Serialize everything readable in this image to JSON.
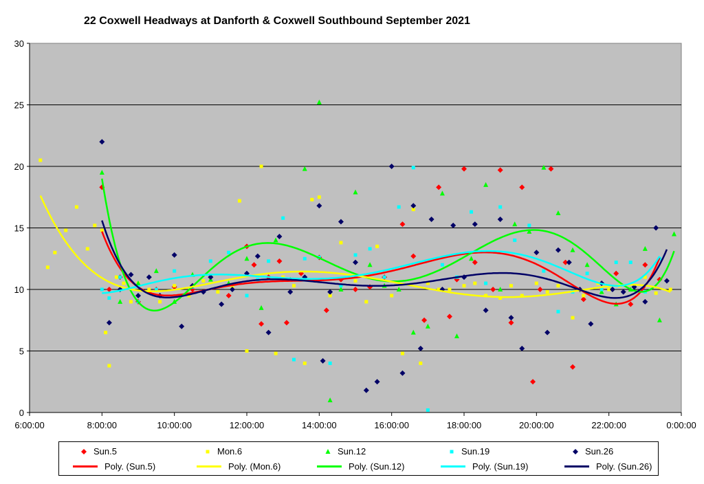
{
  "chart_data": {
    "type": "scatter",
    "title": "22 Coxwell Headways at Danforth & Coxwell Southbound September 2021",
    "xlabel": "",
    "ylabel": "",
    "xlim": [
      6,
      24
    ],
    "ylim": [
      0,
      30
    ],
    "x_ticks": [
      "6:00:00",
      "8:00:00",
      "10:00:00",
      "12:00:00",
      "14:00:00",
      "16:00:00",
      "18:00:00",
      "20:00:00",
      "22:00:00",
      "0:00:00"
    ],
    "y_ticks": [
      "0",
      "5",
      "10",
      "15",
      "20",
      "25",
      "30"
    ],
    "plot_background": "#c0c0c0",
    "grid": true,
    "legend_position": "bottom",
    "series": [
      {
        "name": "Sun.5",
        "marker": "diamond",
        "color": "#ff0000",
        "x": [
          8.0,
          8.2,
          8.5,
          9.0,
          9.5,
          10.0,
          10.5,
          11.0,
          11.5,
          12.0,
          12.2,
          12.4,
          12.6,
          12.9,
          13.1,
          13.5,
          14.0,
          14.2,
          14.6,
          15.0,
          15.4,
          15.8,
          16.3,
          16.6,
          16.9,
          17.3,
          17.6,
          17.8,
          18.0,
          18.3,
          18.8,
          19.0,
          19.3,
          19.6,
          19.9,
          20.1,
          20.4,
          20.8,
          21.0,
          21.3,
          21.8,
          22.2,
          22.6,
          23.0,
          23.4
        ],
        "y": [
          18.3,
          10,
          11,
          9,
          10,
          10.2,
          10,
          11,
          9.5,
          13.5,
          12,
          7.2,
          11,
          12.3,
          7.3,
          11.3,
          12.6,
          8.3,
          10.8,
          10,
          10.2,
          11,
          15.3,
          12.7,
          7.5,
          18.3,
          7.8,
          10.8,
          19.8,
          12.2,
          10,
          19.7,
          7.3,
          18.3,
          2.5,
          10,
          19.8,
          12.2,
          3.7,
          9.2,
          10,
          11.3,
          8.8,
          12,
          10.8
        ]
      },
      {
        "name": "Mon.6",
        "marker": "square",
        "color": "#ffff00",
        "x": [
          6.3,
          6.5,
          6.7,
          7.0,
          7.3,
          7.6,
          7.8,
          8.0,
          8.1,
          8.2,
          8.4,
          8.6,
          8.8,
          9.0,
          9.3,
          9.6,
          10.0,
          10.4,
          10.8,
          11.2,
          11.6,
          11.8,
          12.0,
          12.4,
          12.8,
          13.0,
          13.3,
          13.6,
          13.8,
          14.0,
          14.3,
          14.6,
          15.0,
          15.3,
          15.6,
          16.0,
          16.3,
          16.6,
          16.8,
          17.0,
          17.3,
          17.6,
          18.0,
          18.3,
          18.6,
          19.0,
          19.3,
          19.6,
          20.0,
          20.3,
          20.6,
          21.0,
          21.3,
          21.7,
          22.0,
          22.3,
          22.7,
          23.0,
          23.3,
          23.7
        ],
        "y": [
          20.5,
          11.8,
          13,
          14.8,
          16.7,
          13.3,
          15.2,
          14.8,
          6.5,
          3.8,
          11,
          10.5,
          9,
          10.5,
          10,
          9,
          10.3,
          9.5,
          10.7,
          9.8,
          10.2,
          17.2,
          5,
          20,
          4.8,
          11,
          10.3,
          4,
          17.3,
          17.5,
          9.5,
          13.8,
          10.7,
          9,
          13.5,
          9.5,
          4.8,
          16.5,
          4,
          10.5,
          10,
          10,
          10.3,
          10.5,
          9.5,
          9.3,
          10.3,
          9.5,
          10.5,
          9.8,
          10.3,
          7.7,
          9.5,
          10.5,
          10,
          10.3,
          10.3,
          11,
          9.7,
          10
        ]
      },
      {
        "name": "Sun.12",
        "marker": "triangle",
        "color": "#00ff00",
        "x": [
          8.0,
          8.5,
          9.0,
          9.5,
          10.0,
          10.5,
          11.0,
          11.5,
          12.0,
          12.4,
          12.8,
          13.2,
          13.6,
          14.0,
          14.3,
          14.6,
          15.0,
          15.4,
          15.8,
          16.2,
          16.6,
          17.0,
          17.4,
          17.8,
          18.2,
          18.6,
          19.0,
          19.4,
          19.8,
          20.2,
          20.6,
          21.0,
          21.4,
          21.8,
          22.2,
          22.6,
          23.0,
          23.4,
          23.8
        ],
        "y": [
          19.5,
          9,
          10.5,
          11.5,
          9,
          11.2,
          10.8,
          10.5,
          12.5,
          8.5,
          14,
          10.8,
          19.8,
          25.2,
          1,
          10,
          17.9,
          12,
          10.3,
          10,
          6.5,
          7,
          17.8,
          6.2,
          12.5,
          18.5,
          10,
          15.3,
          14.7,
          19.9,
          16.2,
          13.2,
          12,
          9.8,
          8.8,
          10,
          13.3,
          7.5,
          14.5
        ]
      },
      {
        "name": "Sun.19",
        "marker": "square",
        "color": "#00ffff",
        "x": [
          8.0,
          8.2,
          8.5,
          9.0,
          9.5,
          10.0,
          10.5,
          11.0,
          11.5,
          12.0,
          12.3,
          12.6,
          13.0,
          13.3,
          13.6,
          14.0,
          14.3,
          14.6,
          15.0,
          15.4,
          15.8,
          16.2,
          16.6,
          17.0,
          17.4,
          17.8,
          18.2,
          18.6,
          19.0,
          19.4,
          19.8,
          20.2,
          20.6,
          21.0,
          21.4,
          21.8,
          22.2,
          22.6,
          23.0,
          23.4
        ],
        "y": [
          10,
          9.3,
          11,
          9,
          10,
          11.5,
          10.2,
          12.3,
          13,
          9.5,
          10.8,
          12.3,
          15.8,
          4.3,
          12.5,
          12.6,
          4,
          10.3,
          12.8,
          13.3,
          11,
          16.7,
          19.9,
          0.2,
          12,
          11,
          16.3,
          10.5,
          16.7,
          14,
          15.2,
          11.5,
          8.2,
          9.8,
          11.3,
          10,
          12.2,
          12.2,
          9.8,
          12.5
        ]
      },
      {
        "name": "Sun.26",
        "marker": "diamond",
        "color": "#000066",
        "x": [
          8.0,
          8.2,
          8.5,
          8.8,
          9.0,
          9.3,
          9.6,
          10.0,
          10.2,
          10.5,
          10.8,
          11.0,
          11.3,
          11.6,
          12.0,
          12.3,
          12.6,
          12.9,
          13.2,
          13.6,
          14.0,
          14.1,
          14.3,
          14.6,
          15.0,
          15.3,
          15.6,
          16.0,
          16.3,
          16.6,
          16.8,
          17.1,
          17.4,
          17.7,
          18.0,
          18.3,
          18.6,
          19.0,
          19.3,
          19.6,
          20.0,
          20.3,
          20.6,
          20.9,
          21.2,
          21.5,
          21.8,
          22.1,
          22.4,
          22.7,
          23.0,
          23.3,
          23.6
        ],
        "y": [
          22,
          7.3,
          10,
          11.2,
          9.5,
          11,
          9.5,
          12.8,
          7,
          10.3,
          9.8,
          11,
          8.8,
          10,
          11.3,
          12.7,
          6.5,
          14.3,
          9.8,
          11,
          16.8,
          4.2,
          9.8,
          15.5,
          12.2,
          1.8,
          2.5,
          20,
          3.2,
          16.8,
          5.2,
          15.7,
          10,
          15.2,
          11,
          15.3,
          8.3,
          15.7,
          7.7,
          5.2,
          13,
          6.5,
          13.2,
          12.2,
          10,
          7.2,
          10.5,
          10,
          9.8,
          10.2,
          9,
          15,
          10.7
        ]
      }
    ],
    "trendlines": [
      {
        "name": "Poly. (Sun.5)",
        "color": "#ff0000"
      },
      {
        "name": "Poly. (Mon.6)",
        "color": "#ffff00"
      },
      {
        "name": "Poly. (Sun.12)",
        "color": "#00ff00"
      },
      {
        "name": "Poly. (Sun.19)",
        "color": "#00ffff"
      },
      {
        "name": "Poly. (Sun.26)",
        "color": "#000066"
      }
    ]
  }
}
